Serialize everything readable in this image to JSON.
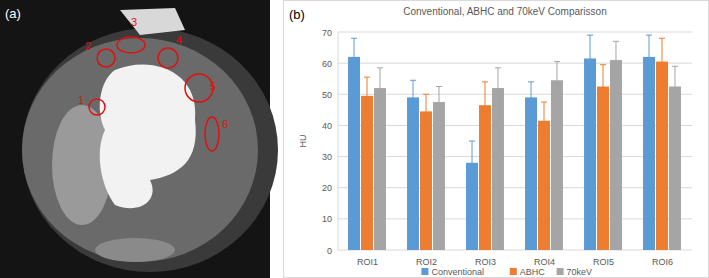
{
  "figure": {
    "panel_labels": [
      "(a)",
      "(b)"
    ],
    "roi_labels": [
      "1",
      "2",
      "3",
      "4",
      "5",
      "6"
    ]
  },
  "chart_data": {
    "type": "bar",
    "title": "Conventional, ABHC and 70keV Comparisson",
    "y_label": "HU",
    "categories": [
      "ROI1",
      "ROI2",
      "ROI3",
      "ROI4",
      "ROI5",
      "ROI6"
    ],
    "series": [
      {
        "name": "Conventional",
        "color": "#5b9bd5",
        "values": [
          62,
          49,
          28,
          49,
          61.5,
          62
        ],
        "errors": [
          6,
          5.5,
          7,
          5,
          7.5,
          7
        ]
      },
      {
        "name": "ABHC",
        "color": "#ed7d31",
        "values": [
          49.5,
          44.5,
          46.5,
          41.5,
          52.5,
          60.5
        ],
        "errors": [
          6,
          5.5,
          7.5,
          6,
          7,
          7.5
        ]
      },
      {
        "name": "70keV",
        "color": "#a5a5a5",
        "values": [
          52,
          47.5,
          52,
          54.5,
          61,
          52.5
        ],
        "errors": [
          6.5,
          5,
          6.5,
          6,
          6,
          6.5
        ]
      }
    ],
    "ylim": [
      0,
      70
    ],
    "yticks": [
      0,
      10,
      20,
      30,
      40,
      50,
      60,
      70
    ],
    "grid": true,
    "legend": "bottom"
  }
}
